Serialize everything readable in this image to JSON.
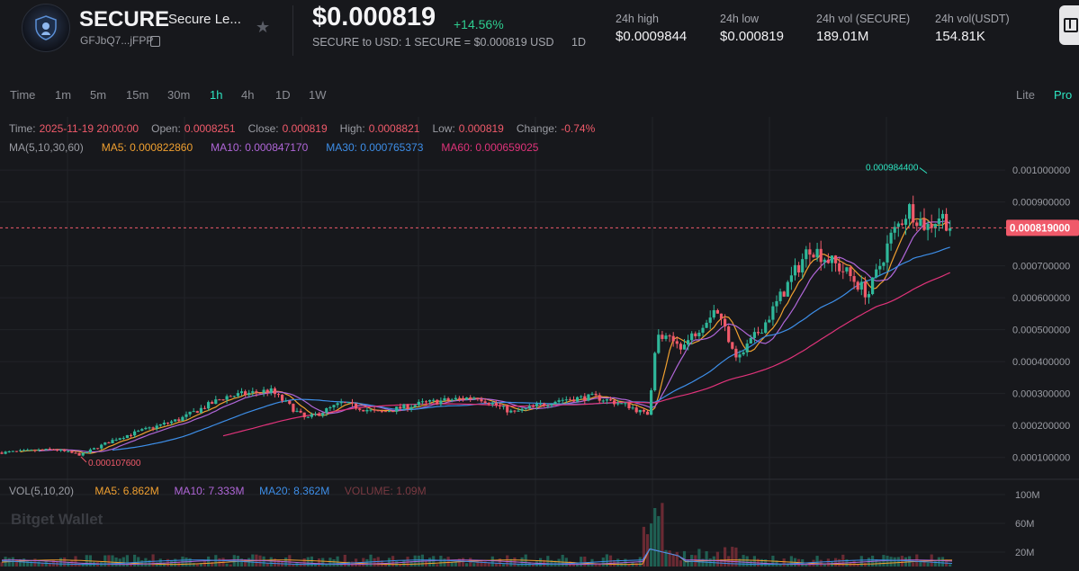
{
  "header": {
    "symbol": "SECURE",
    "name": "Secure Le...",
    "address": "GFJbQ7...jFPP",
    "price": "$0.000819",
    "change": "+14.56%",
    "conversion": "SECURE to USD: 1 SECURE = $0.000819 USD",
    "conversion_period": "1D",
    "stats": [
      {
        "label": "24h high",
        "value": "$0.0009844"
      },
      {
        "label": "24h low",
        "value": "$0.000819"
      },
      {
        "label": "24h vol (SECURE)",
        "value": "189.01M"
      },
      {
        "label": "24h vol(USDT)",
        "value": "154.81K"
      }
    ]
  },
  "timeframes": [
    "Time",
    "1m",
    "5m",
    "15m",
    "30m",
    "1h",
    "4h",
    "1D",
    "1W"
  ],
  "active_timeframe": "1h",
  "modes": [
    "Lite",
    "Pro"
  ],
  "active_mode": "Pro",
  "ohlc": {
    "time_label": "Time:",
    "time": "2025-11-19 20:00:00",
    "open_label": "Open:",
    "open": "0.0008251",
    "close_label": "Close:",
    "close": "0.000819",
    "high_label": "High:",
    "high": "0.0008821",
    "low_label": "Low:",
    "low": "0.000819",
    "change_label": "Change:",
    "change": "-0.74%"
  },
  "ma_legend": {
    "title": "MA(5,10,30,60)",
    "ma5": "MA5: 0.000822860",
    "ma10": "MA10: 0.000847170",
    "ma30": "MA30: 0.000765373",
    "ma60": "MA60: 0.000659025"
  },
  "vol_legend": {
    "title": "VOL(5,10,20)",
    "ma5": "MA5: 6.862M",
    "ma10": "MA10: 7.333M",
    "ma20": "MA20: 8.362M",
    "volume": "VOLUME: 1.09M"
  },
  "watermark": "Bitget Wallet",
  "colors": {
    "up": "#2fb79a",
    "down": "#f05a6a",
    "ma5": "#f0a030",
    "ma10": "#b066d8",
    "ma30": "#3d8ee8",
    "ma60": "#e0337a",
    "accent": "#2ee6c3"
  },
  "chart_data": {
    "type": "candlestick",
    "price_axis_ticks": [
      "0.001000000",
      "0.000900000",
      "0.000700000",
      "0.000600000",
      "0.000500000",
      "0.000400000",
      "0.000300000",
      "0.000200000",
      "0.000100000"
    ],
    "price_axis_values": [
      0.001,
      0.0009,
      0.0007,
      0.0006,
      0.0005,
      0.0004,
      0.0003,
      0.0002,
      0.0001
    ],
    "current_price_label": "0.000819000",
    "current_price": 0.000819,
    "max_label": "0.000984400",
    "max_value": 0.0009844,
    "min_label": "0.000107600",
    "min_value": 0.0001076,
    "volume_axis_ticks": [
      "100M",
      "60M",
      "20M"
    ],
    "volume_axis_values": [
      100,
      60,
      20
    ],
    "ylim": [
      4e-05,
      0.00111
    ]
  }
}
